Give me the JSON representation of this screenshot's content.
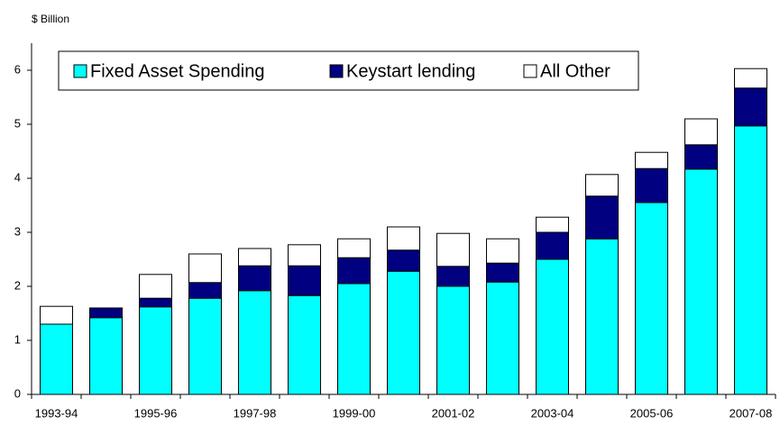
{
  "chart_data": {
    "type": "stacked_bar",
    "y_axis_label": "$ Billion",
    "categories": [
      "1993-94",
      null,
      "1995-96",
      null,
      "1997-98",
      null,
      "1999-00",
      null,
      "2001-02",
      null,
      "2003-04",
      null,
      "2005-06",
      null,
      "2007-08"
    ],
    "series": [
      {
        "name": "Fixed Asset Spending",
        "color": "#00ffff",
        "values": [
          1.3,
          1.42,
          1.62,
          1.78,
          1.92,
          1.83,
          2.05,
          2.28,
          2.0,
          2.08,
          2.5,
          2.88,
          3.55,
          4.17,
          4.97
        ]
      },
      {
        "name": "Keystart lending",
        "color": "#000080",
        "values": [
          0,
          0.18,
          0.16,
          0.29,
          0.46,
          0.55,
          0.48,
          0.39,
          0.37,
          0.35,
          0.5,
          0.79,
          0.63,
          0.45,
          0.7
        ]
      },
      {
        "name": "All Other",
        "color": "#ffffff",
        "values": [
          0.33,
          0,
          0.44,
          0.53,
          0.32,
          0.39,
          0.35,
          0.43,
          0.61,
          0.45,
          0.28,
          0.4,
          0.3,
          0.48,
          0.36
        ]
      }
    ],
    "ylim": [
      0,
      6.5
    ],
    "yticks": [
      0,
      1,
      2,
      3,
      4,
      5,
      6
    ],
    "legend": "top-left"
  }
}
